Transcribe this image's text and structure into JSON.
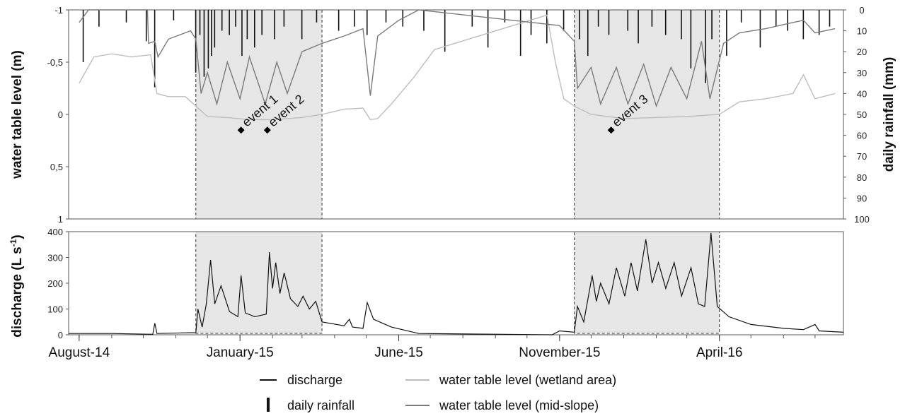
{
  "chart_data": [
    {
      "type": "line",
      "panel": "top",
      "ylabel_left": "water table level (m)",
      "ylabel_right": "daily rainfall  (mm)",
      "ylim_left": [
        -1,
        1
      ],
      "ylim_right": [
        100,
        0
      ],
      "yticks_left": [
        "1",
        "0,5",
        "0",
        "-0,5",
        "-1"
      ],
      "yticks_right": [
        "0",
        "10",
        "20",
        "30",
        "40",
        "50",
        "60",
        "70",
        "80",
        "90",
        "100"
      ],
      "grid": false,
      "shaded_periods": [
        [
          "2014-11-20",
          "2015-03-20"
        ],
        [
          "2015-11-15",
          "2016-04-01"
        ]
      ],
      "annotations": [
        {
          "label": "event 1",
          "date": "2015-01-02",
          "y": 0.15
        },
        {
          "label": "event 2",
          "date": "2015-01-27",
          "y": 0.15
        },
        {
          "label": "event 3",
          "date": "2015-12-20",
          "y": 0.15
        }
      ],
      "series": [
        {
          "name": "water table level (wetland area)",
          "color": "#bdbdbd",
          "points": [
            [
              "2014-08-01",
              -0.3
            ],
            [
              "2014-08-15",
              -0.55
            ],
            [
              "2014-09-01",
              -0.58
            ],
            [
              "2014-09-20",
              -0.55
            ],
            [
              "2014-10-08",
              -0.57
            ],
            [
              "2014-10-14",
              -0.2
            ],
            [
              "2014-10-25",
              -0.17
            ],
            [
              "2014-11-10",
              -0.17
            ],
            [
              "2014-11-20",
              -0.08
            ],
            [
              "2014-12-01",
              0.02
            ],
            [
              "2014-12-20",
              0.03
            ],
            [
              "2015-01-10",
              0.05
            ],
            [
              "2015-02-01",
              0.05
            ],
            [
              "2015-03-01",
              0.03
            ],
            [
              "2015-03-20",
              0.0
            ],
            [
              "2015-04-10",
              -0.05
            ],
            [
              "2015-04-28",
              -0.06
            ],
            [
              "2015-05-05",
              0.05
            ],
            [
              "2015-05-12",
              0.04
            ],
            [
              "2015-05-25",
              -0.1
            ],
            [
              "2015-06-15",
              -0.35
            ],
            [
              "2015-07-05",
              -0.62
            ],
            [
              "2015-10-20",
              -0.95
            ],
            [
              "2015-10-28",
              -0.5
            ],
            [
              "2015-11-05",
              -0.15
            ],
            [
              "2015-11-15",
              -0.08
            ],
            [
              "2015-12-01",
              0.0
            ],
            [
              "2016-01-01",
              0.04
            ],
            [
              "2016-02-01",
              0.03
            ],
            [
              "2016-03-01",
              0.02
            ],
            [
              "2016-04-01",
              0.0
            ],
            [
              "2016-04-20",
              -0.12
            ],
            [
              "2016-05-15",
              -0.15
            ],
            [
              "2016-06-10",
              -0.2
            ],
            [
              "2016-06-20",
              -0.38
            ],
            [
              "2016-07-01",
              -0.15
            ],
            [
              "2016-07-20",
              -0.2
            ]
          ]
        },
        {
          "name": "water table level (mid-slope)",
          "color": "#7a7a7a",
          "points": [
            [
              "2014-08-01",
              -0.88
            ],
            [
              "2014-08-10",
              -1.0
            ],
            [
              "2014-10-05",
              -1.0
            ],
            [
              "2014-10-06",
              -0.68
            ],
            [
              "2014-10-12",
              -0.7
            ],
            [
              "2014-10-15",
              -0.55
            ],
            [
              "2014-10-25",
              -0.72
            ],
            [
              "2014-11-15",
              -0.8
            ],
            [
              "2014-11-20",
              -0.72
            ],
            [
              "2014-11-25",
              -0.2
            ],
            [
              "2014-12-01",
              -0.4
            ],
            [
              "2014-12-10",
              -0.1
            ],
            [
              "2014-12-20",
              -0.5
            ],
            [
              "2015-01-01",
              -0.15
            ],
            [
              "2015-01-10",
              -0.55
            ],
            [
              "2015-01-25",
              -0.1
            ],
            [
              "2015-02-05",
              -0.5
            ],
            [
              "2015-02-15",
              -0.2
            ],
            [
              "2015-03-01",
              -0.6
            ],
            [
              "2015-03-20",
              -0.68
            ],
            [
              "2015-04-10",
              -0.75
            ],
            [
              "2015-04-28",
              -0.82
            ],
            [
              "2015-05-05",
              -0.18
            ],
            [
              "2015-05-12",
              -0.75
            ],
            [
              "2015-06-01",
              -0.9
            ],
            [
              "2015-06-20",
              -1.0
            ],
            [
              "2015-11-01",
              -0.85
            ],
            [
              "2015-11-15",
              -0.7
            ],
            [
              "2015-11-18",
              -0.25
            ],
            [
              "2015-12-01",
              -0.45
            ],
            [
              "2015-12-10",
              -0.1
            ],
            [
              "2015-12-25",
              -0.45
            ],
            [
              "2016-01-05",
              -0.1
            ],
            [
              "2016-01-20",
              -0.48
            ],
            [
              "2016-02-01",
              -0.08
            ],
            [
              "2016-02-15",
              -0.45
            ],
            [
              "2016-03-01",
              -0.15
            ],
            [
              "2016-03-15",
              -0.7
            ],
            [
              "2016-03-23",
              -0.15
            ],
            [
              "2016-04-05",
              -0.68
            ],
            [
              "2016-04-20",
              -0.78
            ],
            [
              "2016-05-15",
              -0.82
            ],
            [
              "2016-06-10",
              -0.88
            ],
            [
              "2016-06-20",
              -0.9
            ],
            [
              "2016-07-01",
              -0.78
            ],
            [
              "2016-07-20",
              -0.82
            ]
          ]
        },
        {
          "name": "daily rainfall",
          "color": "#111111",
          "axis": "right",
          "bars": [
            [
              "2014-08-05",
              25
            ],
            [
              "2014-08-20",
              8
            ],
            [
              "2014-09-15",
              6
            ],
            [
              "2014-10-04",
              15
            ],
            [
              "2014-10-12",
              37
            ],
            [
              "2014-10-30",
              5
            ],
            [
              "2014-11-20",
              30
            ],
            [
              "2014-11-24",
              12
            ],
            [
              "2014-11-28",
              32
            ],
            [
              "2014-12-02",
              28
            ],
            [
              "2014-12-05",
              22
            ],
            [
              "2014-12-08",
              18
            ],
            [
              "2014-12-15",
              10
            ],
            [
              "2014-12-22",
              12
            ],
            [
              "2014-12-28",
              8
            ],
            [
              "2015-01-03",
              22
            ],
            [
              "2015-01-08",
              14
            ],
            [
              "2015-01-15",
              18
            ],
            [
              "2015-01-22",
              12
            ],
            [
              "2015-02-03",
              14
            ],
            [
              "2015-02-12",
              8
            ],
            [
              "2015-03-01",
              14
            ],
            [
              "2015-03-15",
              6
            ],
            [
              "2015-04-05",
              10
            ],
            [
              "2015-04-20",
              8
            ],
            [
              "2015-05-02",
              12
            ],
            [
              "2015-05-20",
              6
            ],
            [
              "2015-06-05",
              8
            ],
            [
              "2015-06-25",
              10
            ],
            [
              "2015-07-15",
              20
            ],
            [
              "2015-08-10",
              8
            ],
            [
              "2015-08-25",
              18
            ],
            [
              "2015-09-10",
              6
            ],
            [
              "2015-09-25",
              22
            ],
            [
              "2015-10-05",
              12
            ],
            [
              "2015-10-20",
              16
            ],
            [
              "2015-11-05",
              10
            ],
            [
              "2015-11-20",
              14
            ],
            [
              "2015-11-28",
              22
            ],
            [
              "2015-12-08",
              8
            ],
            [
              "2015-12-18",
              12
            ],
            [
              "2016-01-05",
              10
            ],
            [
              "2016-01-15",
              16
            ],
            [
              "2016-01-28",
              8
            ],
            [
              "2016-02-10",
              12
            ],
            [
              "2016-02-25",
              14
            ],
            [
              "2016-03-05",
              28
            ],
            [
              "2016-03-19",
              35
            ],
            [
              "2016-03-25",
              14
            ],
            [
              "2016-04-08",
              22
            ],
            [
              "2016-04-22",
              6
            ],
            [
              "2016-05-10",
              18
            ],
            [
              "2016-05-25",
              8
            ],
            [
              "2016-06-05",
              10
            ],
            [
              "2016-06-20",
              14
            ],
            [
              "2016-07-05",
              12
            ],
            [
              "2016-07-15",
              8
            ]
          ]
        }
      ]
    },
    {
      "type": "line",
      "panel": "bottom",
      "ylabel": "discharge  (L s",
      "ylabel_sup": "-1",
      "ylabel_close": ")",
      "ylim": [
        0,
        400
      ],
      "yticks": [
        "0",
        "100",
        "200",
        "300",
        "400"
      ],
      "xlabels": [
        "August-14",
        "January-15",
        "June-15",
        "November-15",
        "April-16"
      ],
      "xlabel_dates": [
        "2014-08-01",
        "2015-01-01",
        "2015-06-01",
        "2015-11-01",
        "2016-04-01"
      ],
      "xlim": [
        "2014-07-22",
        "2016-07-28"
      ],
      "grid": false,
      "shaded_periods": [
        [
          "2014-11-20",
          "2015-03-20"
        ],
        [
          "2015-11-15",
          "2016-04-01"
        ]
      ],
      "series": [
        {
          "name": "discharge",
          "color": "#111111",
          "points": [
            [
              "2014-07-22",
              5
            ],
            [
              "2014-09-01",
              5
            ],
            [
              "2014-10-10",
              2
            ],
            [
              "2014-10-12",
              45
            ],
            [
              "2014-10-14",
              5
            ],
            [
              "2014-11-15",
              8
            ],
            [
              "2014-11-20",
              8
            ],
            [
              "2014-11-22",
              100
            ],
            [
              "2014-11-26",
              30
            ],
            [
              "2014-11-30",
              120
            ],
            [
              "2014-12-04",
              290
            ],
            [
              "2014-12-08",
              120
            ],
            [
              "2014-12-14",
              190
            ],
            [
              "2014-12-22",
              90
            ],
            [
              "2014-12-30",
              70
            ],
            [
              "2015-01-02",
              230
            ],
            [
              "2015-01-06",
              85
            ],
            [
              "2015-01-15",
              70
            ],
            [
              "2015-01-26",
              80
            ],
            [
              "2015-01-29",
              320
            ],
            [
              "2015-02-01",
              180
            ],
            [
              "2015-02-04",
              280
            ],
            [
              "2015-02-08",
              160
            ],
            [
              "2015-02-12",
              240
            ],
            [
              "2015-02-18",
              140
            ],
            [
              "2015-02-25",
              110
            ],
            [
              "2015-03-02",
              150
            ],
            [
              "2015-03-08",
              100
            ],
            [
              "2015-03-14",
              130
            ],
            [
              "2015-03-20",
              50
            ],
            [
              "2015-04-10",
              35
            ],
            [
              "2015-04-15",
              60
            ],
            [
              "2015-04-18",
              30
            ],
            [
              "2015-04-28",
              25
            ],
            [
              "2015-05-02",
              125
            ],
            [
              "2015-05-08",
              60
            ],
            [
              "2015-05-25",
              30
            ],
            [
              "2015-06-20",
              5
            ],
            [
              "2015-10-25",
              0
            ],
            [
              "2015-11-01",
              15
            ],
            [
              "2015-11-15",
              10
            ],
            [
              "2015-11-18",
              110
            ],
            [
              "2015-11-24",
              50
            ],
            [
              "2015-12-02",
              230
            ],
            [
              "2015-12-06",
              130
            ],
            [
              "2015-12-10",
              200
            ],
            [
              "2015-12-18",
              120
            ],
            [
              "2015-12-25",
              260
            ],
            [
              "2016-01-02",
              150
            ],
            [
              "2016-01-08",
              280
            ],
            [
              "2016-01-14",
              170
            ],
            [
              "2016-01-22",
              370
            ],
            [
              "2016-01-28",
              200
            ],
            [
              "2016-02-03",
              280
            ],
            [
              "2016-02-10",
              180
            ],
            [
              "2016-02-18",
              280
            ],
            [
              "2016-02-25",
              150
            ],
            [
              "2016-03-05",
              260
            ],
            [
              "2016-03-12",
              120
            ],
            [
              "2016-03-18",
              110
            ],
            [
              "2016-03-24",
              395
            ],
            [
              "2016-03-30",
              110
            ],
            [
              "2016-04-10",
              70
            ],
            [
              "2016-05-01",
              40
            ],
            [
              "2016-06-01",
              25
            ],
            [
              "2016-06-20",
              20
            ],
            [
              "2016-07-01",
              40
            ],
            [
              "2016-07-05",
              15
            ],
            [
              "2016-07-28",
              10
            ]
          ]
        }
      ]
    }
  ],
  "legend": {
    "items": [
      {
        "label": "discharge",
        "symbol": "line",
        "color": "#111111"
      },
      {
        "label": "water table level (wetland area)",
        "symbol": "line",
        "color": "#bdbdbd"
      },
      {
        "label": "daily rainfall",
        "symbol": "bar",
        "color": "#111111"
      },
      {
        "label": "water table level (mid-slope)",
        "symbol": "line",
        "color": "#7a7a7a"
      }
    ]
  }
}
